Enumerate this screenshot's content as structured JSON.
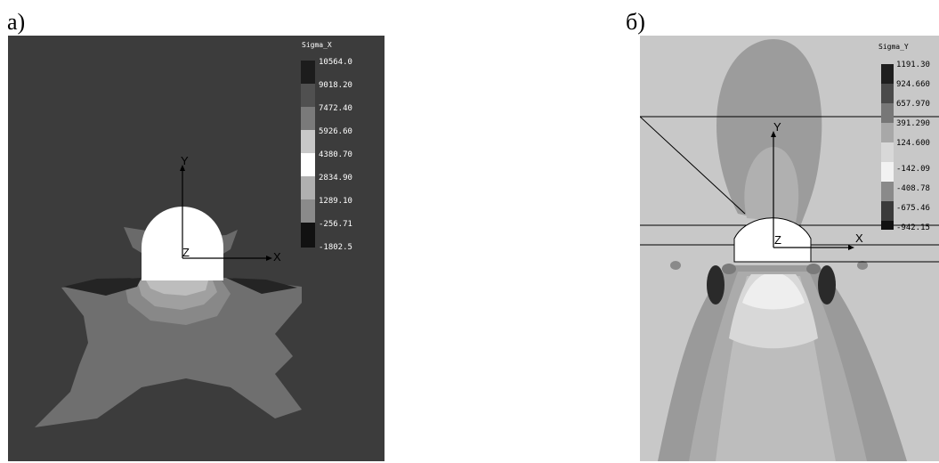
{
  "panels": [
    {
      "label": "а)",
      "legend_title": "Sigma_X",
      "legend_values": [
        "10564.0",
        "9018.20",
        "7472.40",
        "5926.60",
        "4380.70",
        "2834.90",
        "1289.10",
        "-256.71",
        "-1802.5"
      ],
      "axis_labels": {
        "y": "Y",
        "z": "Z",
        "x": "X"
      },
      "colors": {
        "background": "#3c3c3c",
        "region": "#6f6f6f",
        "hole": "#ffffff"
      }
    },
    {
      "label": "б)",
      "legend_title": "Sigma_Y",
      "legend_values": [
        "1191.30",
        "924.660",
        "657.970",
        "391.290",
        "124.600",
        "-142.09",
        "-408.78",
        "-675.46",
        "-942.15"
      ],
      "axis_labels": {
        "y": "Y",
        "z": "Z",
        "x": "X"
      },
      "colors": {
        "background": "#c8c8c8",
        "region": "#9a9a9a",
        "hole": "#ffffff"
      }
    }
  ]
}
